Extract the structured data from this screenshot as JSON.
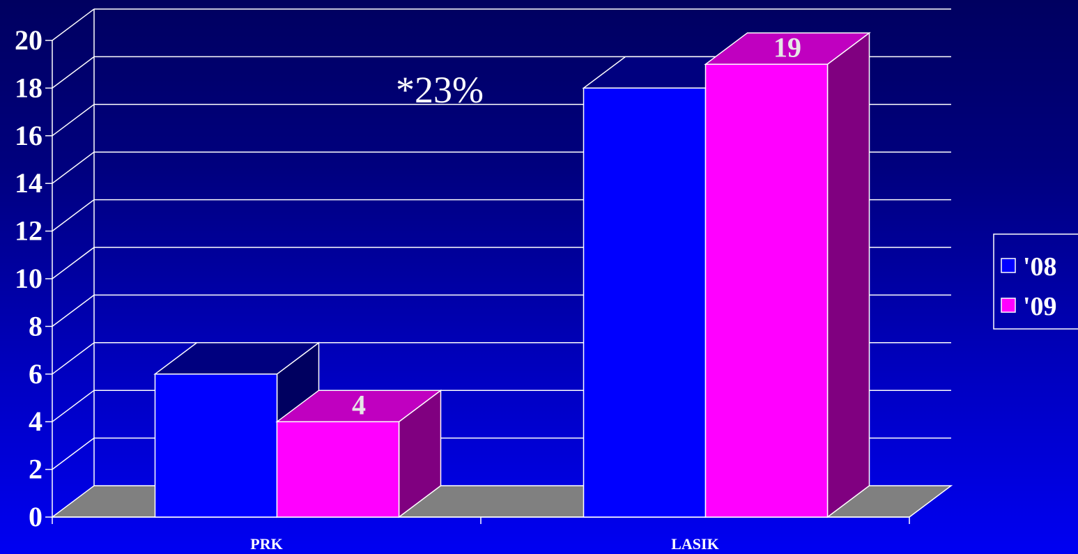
{
  "colors": {
    "series_2008_front": "#0000ff",
    "series_2008_top": "#00007f",
    "series_2008_side": "#000060",
    "series_2009_front": "#ff00ff",
    "series_2009_top": "#c000c0",
    "series_2009_side": "#800080",
    "floor": "#808080",
    "grid": "#ffffff"
  },
  "chart_data": {
    "type": "bar",
    "style": "3d-clustered-column",
    "categories": [
      "PRK",
      "LASIK"
    ],
    "series": [
      {
        "name": "'08",
        "values": [
          6,
          18
        ]
      },
      {
        "name": "'09",
        "values": [
          4,
          19
        ]
      }
    ],
    "data_labels": [
      {
        "series": 1,
        "category": 0,
        "text": "4"
      },
      {
        "series": 1,
        "category": 1,
        "text": "19"
      }
    ],
    "y_ticks": [
      "0",
      "2",
      "4",
      "6",
      "8",
      "10",
      "12",
      "14",
      "16",
      "18",
      "20"
    ],
    "ylim": [
      0,
      20
    ],
    "grid": true,
    "legend_position": "right",
    "annotation": "*23%"
  }
}
